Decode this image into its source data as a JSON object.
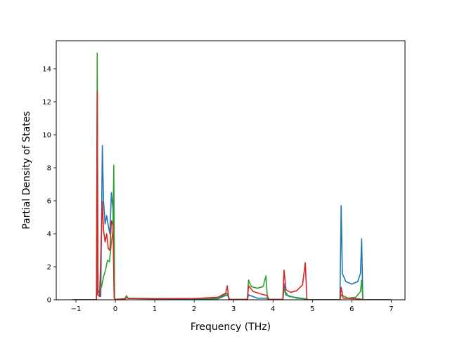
{
  "chart_data": {
    "type": "line",
    "title": "",
    "xlabel": "Frequency (THz)",
    "ylabel": "Partial Density of States",
    "xlim": [
      -1.5,
      7.35
    ],
    "ylim": [
      0,
      15.7
    ],
    "xticks": [
      -1,
      0,
      1,
      2,
      3,
      4,
      5,
      6,
      7
    ],
    "yticks": [
      0,
      2,
      4,
      6,
      8,
      10,
      12,
      14
    ],
    "grid": false,
    "legend": "none",
    "series": [
      {
        "color": "#1f77b4",
        "points": [
          [
            -1.1,
            0
          ],
          [
            -0.48,
            0
          ],
          [
            -0.46,
            3.2
          ],
          [
            -0.45,
            0.3
          ],
          [
            -0.37,
            0.2
          ],
          [
            -0.33,
            9.35
          ],
          [
            -0.3,
            6.0
          ],
          [
            -0.26,
            4.6
          ],
          [
            -0.22,
            5.1
          ],
          [
            -0.18,
            4.5
          ],
          [
            -0.14,
            4.0
          ],
          [
            -0.1,
            6.5
          ],
          [
            -0.06,
            5.5
          ],
          [
            -0.03,
            0.1
          ],
          [
            0.0,
            0.02
          ],
          [
            0.25,
            0.05
          ],
          [
            0.28,
            0.2
          ],
          [
            0.32,
            0.08
          ],
          [
            1.0,
            0.06
          ],
          [
            2.0,
            0.05
          ],
          [
            2.6,
            0.06
          ],
          [
            2.84,
            0.3
          ],
          [
            2.9,
            0.02
          ],
          [
            3.35,
            0.02
          ],
          [
            3.38,
            0.3
          ],
          [
            3.6,
            0.1
          ],
          [
            3.85,
            0.1
          ],
          [
            3.9,
            0.02
          ],
          [
            4.25,
            0.02
          ],
          [
            4.28,
            1.0
          ],
          [
            4.32,
            0.3
          ],
          [
            4.6,
            0.1
          ],
          [
            4.85,
            0.05
          ],
          [
            4.9,
            0.0
          ],
          [
            5.7,
            0.0
          ],
          [
            5.73,
            5.7
          ],
          [
            5.76,
            1.6
          ],
          [
            5.85,
            1.1
          ],
          [
            6.0,
            0.95
          ],
          [
            6.15,
            1.1
          ],
          [
            6.22,
            1.6
          ],
          [
            6.25,
            3.7
          ],
          [
            6.28,
            0.0
          ],
          [
            7.0,
            0.0
          ]
        ]
      },
      {
        "color": "#2ca02c",
        "points": [
          [
            -1.1,
            0
          ],
          [
            -0.48,
            0
          ],
          [
            -0.46,
            14.95
          ],
          [
            -0.44,
            0.4
          ],
          [
            -0.35,
            0.8
          ],
          [
            -0.3,
            1.4
          ],
          [
            -0.25,
            1.8
          ],
          [
            -0.2,
            2.4
          ],
          [
            -0.15,
            2.3
          ],
          [
            -0.1,
            3.5
          ],
          [
            -0.06,
            4.2
          ],
          [
            -0.04,
            8.15
          ],
          [
            -0.02,
            0.1
          ],
          [
            0.0,
            0.02
          ],
          [
            0.25,
            0.08
          ],
          [
            0.28,
            0.25
          ],
          [
            0.32,
            0.1
          ],
          [
            1.0,
            0.08
          ],
          [
            2.0,
            0.08
          ],
          [
            2.6,
            0.08
          ],
          [
            2.84,
            0.4
          ],
          [
            2.9,
            0.02
          ],
          [
            3.35,
            0.02
          ],
          [
            3.38,
            1.2
          ],
          [
            3.45,
            0.8
          ],
          [
            3.6,
            0.7
          ],
          [
            3.75,
            0.8
          ],
          [
            3.82,
            1.45
          ],
          [
            3.86,
            0.02
          ],
          [
            4.25,
            0.02
          ],
          [
            4.28,
            0.6
          ],
          [
            4.4,
            0.2
          ],
          [
            4.85,
            0.05
          ],
          [
            4.9,
            0.0
          ],
          [
            5.7,
            0.0
          ],
          [
            5.73,
            0.3
          ],
          [
            5.9,
            0.1
          ],
          [
            6.1,
            0.15
          ],
          [
            6.22,
            0.5
          ],
          [
            6.25,
            1.2
          ],
          [
            6.28,
            0.0
          ],
          [
            7.0,
            0.0
          ]
        ]
      },
      {
        "color": "#d62728",
        "points": [
          [
            -1.1,
            0
          ],
          [
            -0.48,
            0
          ],
          [
            -0.46,
            12.6
          ],
          [
            -0.44,
            0.3
          ],
          [
            -0.4,
            0.2
          ],
          [
            -0.33,
            5.95
          ],
          [
            -0.3,
            4.2
          ],
          [
            -0.26,
            3.5
          ],
          [
            -0.22,
            4.0
          ],
          [
            -0.18,
            3.1
          ],
          [
            -0.14,
            3.0
          ],
          [
            -0.1,
            4.8
          ],
          [
            -0.06,
            4.5
          ],
          [
            -0.03,
            0.1
          ],
          [
            0.0,
            0.02
          ],
          [
            0.25,
            0.05
          ],
          [
            0.28,
            0.15
          ],
          [
            0.32,
            0.08
          ],
          [
            1.0,
            0.06
          ],
          [
            2.0,
            0.08
          ],
          [
            2.6,
            0.15
          ],
          [
            2.8,
            0.4
          ],
          [
            2.84,
            0.85
          ],
          [
            2.88,
            0.02
          ],
          [
            3.35,
            0.02
          ],
          [
            3.38,
            0.85
          ],
          [
            3.5,
            0.5
          ],
          [
            3.7,
            0.35
          ],
          [
            3.85,
            0.25
          ],
          [
            3.9,
            0.02
          ],
          [
            4.25,
            0.02
          ],
          [
            4.28,
            1.8
          ],
          [
            4.33,
            0.6
          ],
          [
            4.45,
            0.45
          ],
          [
            4.6,
            0.55
          ],
          [
            4.75,
            0.9
          ],
          [
            4.82,
            2.25
          ],
          [
            4.86,
            0.0
          ],
          [
            5.7,
            0.0
          ],
          [
            5.73,
            0.75
          ],
          [
            5.78,
            0.1
          ],
          [
            6.2,
            0.05
          ],
          [
            6.28,
            0.0
          ],
          [
            7.0,
            0.0
          ]
        ]
      }
    ]
  }
}
